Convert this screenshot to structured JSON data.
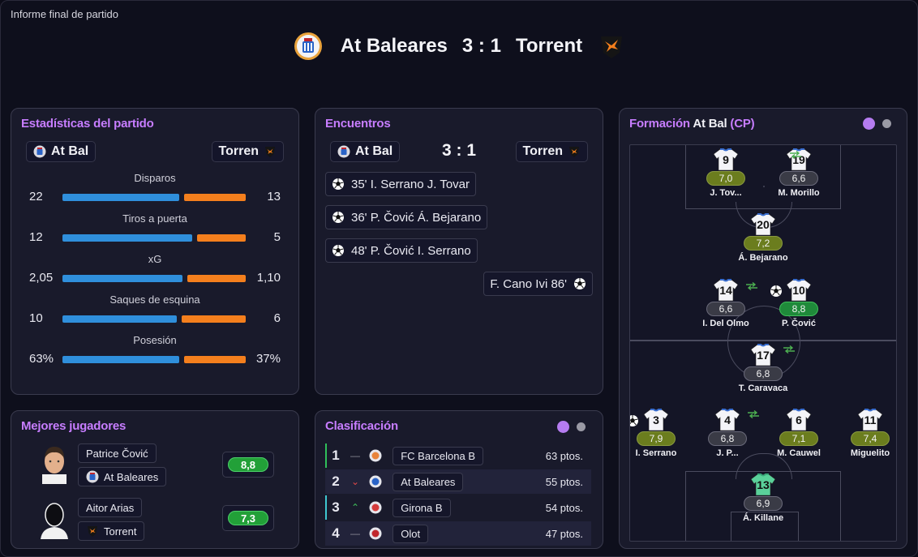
{
  "report_title": "Informe final de partido",
  "match": {
    "home": "At Baleares",
    "score": "3 : 1",
    "away": "Torrent"
  },
  "stats_panel": {
    "title": "Estadísticas del partido",
    "home_chip": "At Bal",
    "away_chip": "Torren",
    "stats": [
      {
        "label": "Disparos",
        "home": "22",
        "away": "13",
        "home_share": 0.63,
        "away_share": 0.37
      },
      {
        "label": "Tiros a puerta",
        "home": "12",
        "away": "5",
        "home_share": 0.7,
        "away_share": 0.3
      },
      {
        "label": "xG",
        "home": "2,05",
        "away": "1,10",
        "home_share": 0.65,
        "away_share": 0.35
      },
      {
        "label": "Saques de esquina",
        "home": "10",
        "away": "6",
        "home_share": 0.62,
        "away_share": 0.38
      },
      {
        "label": "Posesión",
        "home": "63%",
        "away": "37%",
        "home_share": 0.63,
        "away_share": 0.37
      }
    ]
  },
  "encounters_panel": {
    "title": "Encuentros",
    "home_chip": "At Bal",
    "score": "3 : 1",
    "away_chip": "Torren",
    "events": [
      {
        "text": "35' I. Serrano J. Tovar",
        "side": "home"
      },
      {
        "text": "36' P. Čović Á. Bejarano",
        "side": "home"
      },
      {
        "text": "48' P. Čović I. Serrano",
        "side": "home"
      },
      {
        "text": "F. Cano Ivi 86'",
        "side": "away"
      }
    ]
  },
  "best_players_panel": {
    "title": "Mejores jugadores",
    "players": [
      {
        "name": "Patrice Čović",
        "team": "At Baleares",
        "rating": "8,8"
      },
      {
        "name": "Aitor Arias",
        "team": "Torrent",
        "rating": "7,3"
      }
    ]
  },
  "standings_panel": {
    "title": "Clasificación",
    "rows": [
      {
        "pos": "1",
        "trend": "—",
        "team": "FC Barcelona B",
        "pts": "63 ptos."
      },
      {
        "pos": "2",
        "trend": "⌄",
        "team": "At Baleares",
        "pts": "55 ptos."
      },
      {
        "pos": "3",
        "trend": "⌃",
        "team": "Girona B",
        "pts": "54 ptos."
      },
      {
        "pos": "4",
        "trend": "—",
        "team": "Olot",
        "pts": "47 ptos."
      }
    ]
  },
  "formation_panel": {
    "title_prefix": "Formación",
    "title_team": "At Bal",
    "title_suffix": "(CP)",
    "players": [
      {
        "num": "9",
        "rating": "7,0",
        "name": "J. Tov...",
        "rate": "olive"
      },
      {
        "num": "19",
        "rating": "6,6",
        "name": "M. Morillo",
        "rate": "gray"
      },
      {
        "num": "20",
        "rating": "7,2",
        "name": "Á. Bejarano",
        "rate": "olive"
      },
      {
        "num": "14",
        "rating": "6,6",
        "name": "I. Del Olmo",
        "rate": "gray"
      },
      {
        "num": "10",
        "rating": "8,8",
        "name": "P. Čović",
        "rate": "green"
      },
      {
        "num": "17",
        "rating": "6,8",
        "name": "T. Caravaca",
        "rate": "gray"
      },
      {
        "num": "3",
        "rating": "7,9",
        "name": "I. Serrano",
        "rate": "olive"
      },
      {
        "num": "4",
        "rating": "6,8",
        "name": "J. P...",
        "rate": "gray"
      },
      {
        "num": "6",
        "rating": "7,1",
        "name": "M. Cauwel",
        "rate": "olive"
      },
      {
        "num": "11",
        "rating": "7,4",
        "name": "Miguelito",
        "rate": "olive"
      },
      {
        "num": "13",
        "rating": "6,9",
        "name": "Á. Killane",
        "rate": "gray"
      }
    ]
  },
  "colors": {
    "accent": "#c77dff",
    "home_bar": "#2f8fdc",
    "away_bar": "#f47f1d",
    "rating_green": "#22a038"
  },
  "icons": [
    "baleares-crest-icon",
    "torrent-crest-icon",
    "ball-icon",
    "substitution-icon",
    "player-avatar-icon",
    "player-silhouette-icon"
  ]
}
